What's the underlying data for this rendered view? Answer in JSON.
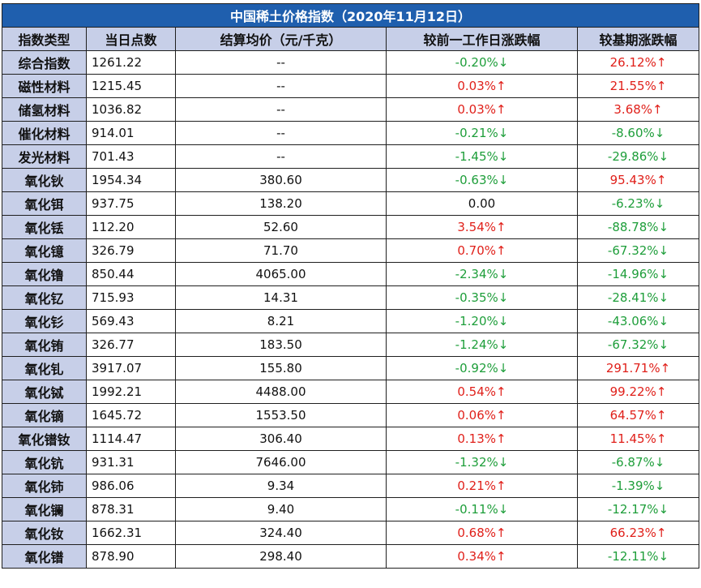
{
  "title": "中国稀土价格指数（2020年11月12日）",
  "headers": [
    "指数类型",
    "当日点数",
    "结算均价（元/千克）",
    "较前一工作日涨跌幅",
    "较基期涨跌幅"
  ],
  "colors": {
    "up": "#e0201a",
    "down": "#1e9e3a",
    "title_bg": "#1f5fae",
    "header_bg": "#c7cfe8"
  },
  "rows": [
    {
      "name": "综合指数",
      "index": "1261.22",
      "price": "--",
      "day": "-0.20%↓",
      "day_dir": "down",
      "base": "26.12%↑",
      "base_dir": "up"
    },
    {
      "name": "磁性材料",
      "index": "1215.45",
      "price": "--",
      "day": "0.03%↑",
      "day_dir": "up",
      "base": "21.55%↑",
      "base_dir": "up"
    },
    {
      "name": "储氢材料",
      "index": "1036.82",
      "price": "--",
      "day": "0.03%↑",
      "day_dir": "up",
      "base": "3.68%↑",
      "base_dir": "up"
    },
    {
      "name": "催化材料",
      "index": "914.01",
      "price": "--",
      "day": "-0.21%↓",
      "day_dir": "down",
      "base": "-8.60%↓",
      "base_dir": "down"
    },
    {
      "name": "发光材料",
      "index": "701.43",
      "price": "--",
      "day": "-1.45%↓",
      "day_dir": "down",
      "base": "-29.86%↓",
      "base_dir": "down"
    },
    {
      "name": "氧化钬",
      "index": "1954.34",
      "price": "380.60",
      "day": "-0.63%↓",
      "day_dir": "down",
      "base": "95.43%↑",
      "base_dir": "up"
    },
    {
      "name": "氧化铒",
      "index": "937.75",
      "price": "138.20",
      "day": "0.00",
      "day_dir": "flat",
      "base": "-6.23%↓",
      "base_dir": "down"
    },
    {
      "name": "氧化铥",
      "index": "112.20",
      "price": "52.60",
      "day": "3.54%↑",
      "day_dir": "up",
      "base": "-88.78%↓",
      "base_dir": "down"
    },
    {
      "name": "氧化镱",
      "index": "326.79",
      "price": "71.70",
      "day": "0.70%↑",
      "day_dir": "up",
      "base": "-67.32%↓",
      "base_dir": "down"
    },
    {
      "name": "氧化镥",
      "index": "850.44",
      "price": "4065.00",
      "day": "-2.34%↓",
      "day_dir": "down",
      "base": "-14.96%↓",
      "base_dir": "down"
    },
    {
      "name": "氧化钇",
      "index": "715.93",
      "price": "14.31",
      "day": "-0.35%↓",
      "day_dir": "down",
      "base": "-28.41%↓",
      "base_dir": "down"
    },
    {
      "name": "氧化钐",
      "index": "569.43",
      "price": "8.21",
      "day": "-1.20%↓",
      "day_dir": "down",
      "base": "-43.06%↓",
      "base_dir": "down"
    },
    {
      "name": "氧化铕",
      "index": "326.77",
      "price": "183.50",
      "day": "-1.24%↓",
      "day_dir": "down",
      "base": "-67.32%↓",
      "base_dir": "down"
    },
    {
      "name": "氧化钆",
      "index": "3917.07",
      "price": "155.80",
      "day": "-0.92%↓",
      "day_dir": "down",
      "base": "291.71%↑",
      "base_dir": "up"
    },
    {
      "name": "氧化铽",
      "index": "1992.21",
      "price": "4488.00",
      "day": "0.54%↑",
      "day_dir": "up",
      "base": "99.22%↑",
      "base_dir": "up"
    },
    {
      "name": "氧化镝",
      "index": "1645.72",
      "price": "1553.50",
      "day": "0.06%↑",
      "day_dir": "up",
      "base": "64.57%↑",
      "base_dir": "up"
    },
    {
      "name": "氧化镨钕",
      "index": "1114.47",
      "price": "306.40",
      "day": "0.13%↑",
      "day_dir": "up",
      "base": "11.45%↑",
      "base_dir": "up"
    },
    {
      "name": "氧化钪",
      "index": "931.31",
      "price": "7646.00",
      "day": "-1.32%↓",
      "day_dir": "down",
      "base": "-6.87%↓",
      "base_dir": "down"
    },
    {
      "name": "氧化铈",
      "index": "986.06",
      "price": "9.34",
      "day": "0.21%↑",
      "day_dir": "up",
      "base": "-1.39%↓",
      "base_dir": "down"
    },
    {
      "name": "氧化镧",
      "index": "878.31",
      "price": "9.40",
      "day": "-0.11%↓",
      "day_dir": "down",
      "base": "-12.17%↓",
      "base_dir": "down"
    },
    {
      "name": "氧化钕",
      "index": "1662.31",
      "price": "324.40",
      "day": "0.68%↑",
      "day_dir": "up",
      "base": "66.23%↑",
      "base_dir": "up"
    },
    {
      "name": "氧化镨",
      "index": "878.90",
      "price": "298.40",
      "day": "0.34%↑",
      "day_dir": "up",
      "base": "-12.11%↓",
      "base_dir": "down"
    }
  ]
}
